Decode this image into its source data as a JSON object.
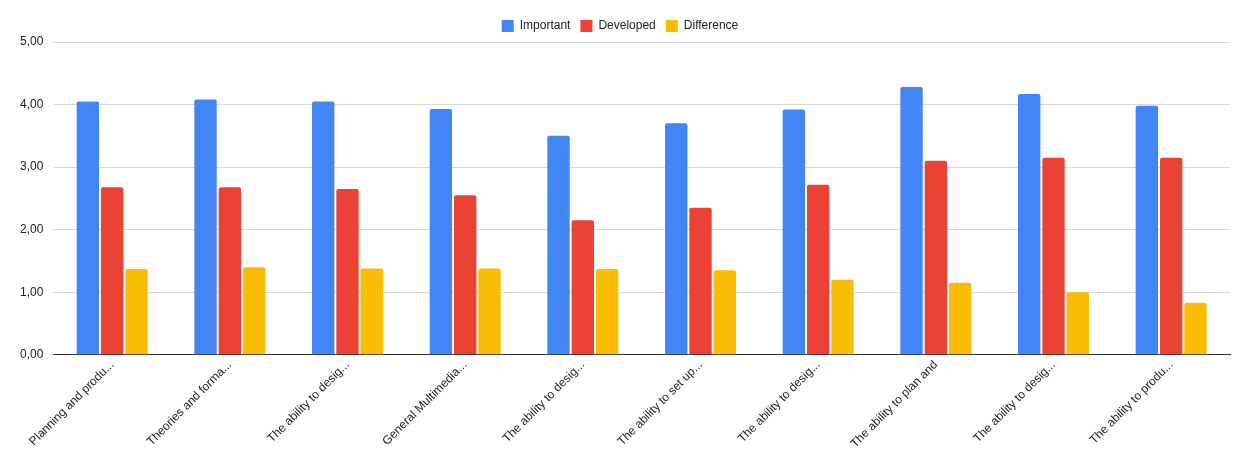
{
  "chart_data": {
    "type": "bar",
    "categories": [
      "Planning and produ...",
      "Theories and forma...",
      "The ability to desig...",
      "General Multimedia...",
      "The ability to desig...",
      "The ability to set up...",
      "The ability to desig...",
      "The ability to plan and",
      "The ability to desig...",
      "The ability to produ..."
    ],
    "series": [
      {
        "name": "Important",
        "color": "#4285f4",
        "values": [
          4.05,
          4.08,
          4.05,
          3.93,
          3.5,
          3.7,
          3.92,
          4.28,
          4.17,
          3.98
        ]
      },
      {
        "name": "Developed",
        "color": "#ea4335",
        "values": [
          2.68,
          2.68,
          2.65,
          2.55,
          2.15,
          2.35,
          2.72,
          3.1,
          3.15,
          3.15
        ]
      },
      {
        "name": "Difference",
        "color": "#fbbc04",
        "values": [
          1.37,
          1.4,
          1.38,
          1.38,
          1.37,
          1.35,
          1.2,
          1.15,
          1.0,
          0.83
        ]
      }
    ],
    "ylim": [
      0,
      5
    ],
    "yticks": [
      {
        "value": 0,
        "label": "0,00"
      },
      {
        "value": 1,
        "label": "1,00"
      },
      {
        "value": 2,
        "label": "2,00"
      },
      {
        "value": 3,
        "label": "3,00"
      },
      {
        "value": 4,
        "label": "4,00"
      },
      {
        "value": 5,
        "label": "5,00"
      }
    ],
    "grid": "y",
    "legend": "top"
  }
}
